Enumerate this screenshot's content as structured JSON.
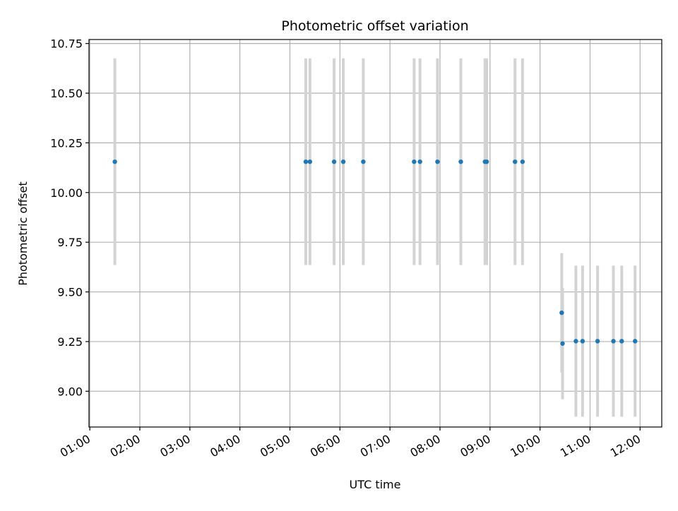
{
  "chart_data": {
    "type": "scatter",
    "title": "Photometric offset variation",
    "xlabel": "UTC time",
    "ylabel": "Photometric offset",
    "x_ticks": [
      "01:00",
      "02:00",
      "03:00",
      "04:00",
      "05:00",
      "06:00",
      "07:00",
      "08:00",
      "09:00",
      "10:00",
      "11:00",
      "12:00"
    ],
    "y_ticks": [
      "9.00",
      "9.25",
      "9.50",
      "9.75",
      "10.00",
      "10.25",
      "10.50",
      "10.75"
    ],
    "xlim": [
      "00:59",
      "12:26"
    ],
    "ylim": [
      8.82,
      10.77
    ],
    "grid": true,
    "colors": {
      "points": "#1f77b4",
      "errorbars": "#d3d3d3",
      "grid": "#b0b0b0"
    },
    "points": [
      {
        "x": "01:30",
        "y": 10.155,
        "err": 0.52
      },
      {
        "x": "05:19",
        "y": 10.155,
        "err": 0.52
      },
      {
        "x": "05:24",
        "y": 10.155,
        "err": 0.52
      },
      {
        "x": "05:53",
        "y": 10.155,
        "err": 0.52
      },
      {
        "x": "06:04",
        "y": 10.155,
        "err": 0.52
      },
      {
        "x": "06:28",
        "y": 10.155,
        "err": 0.52
      },
      {
        "x": "07:29",
        "y": 10.155,
        "err": 0.52
      },
      {
        "x": "07:36",
        "y": 10.155,
        "err": 0.52
      },
      {
        "x": "07:57",
        "y": 10.155,
        "err": 0.52
      },
      {
        "x": "08:25",
        "y": 10.155,
        "err": 0.52
      },
      {
        "x": "08:54",
        "y": 10.155,
        "err": 0.52
      },
      {
        "x": "08:56",
        "y": 10.155,
        "err": 0.52
      },
      {
        "x": "09:30",
        "y": 10.155,
        "err": 0.52
      },
      {
        "x": "09:39",
        "y": 10.155,
        "err": 0.52
      },
      {
        "x": "10:26",
        "y": 9.395,
        "err": 0.3
      },
      {
        "x": "10:27",
        "y": 9.24,
        "err": 0.28
      },
      {
        "x": "10:43",
        "y": 9.252,
        "err": 0.38
      },
      {
        "x": "10:51",
        "y": 9.252,
        "err": 0.38
      },
      {
        "x": "11:09",
        "y": 9.252,
        "err": 0.38
      },
      {
        "x": "11:28",
        "y": 9.252,
        "err": 0.38
      },
      {
        "x": "11:38",
        "y": 9.252,
        "err": 0.38
      },
      {
        "x": "11:54",
        "y": 9.252,
        "err": 0.38
      }
    ]
  }
}
